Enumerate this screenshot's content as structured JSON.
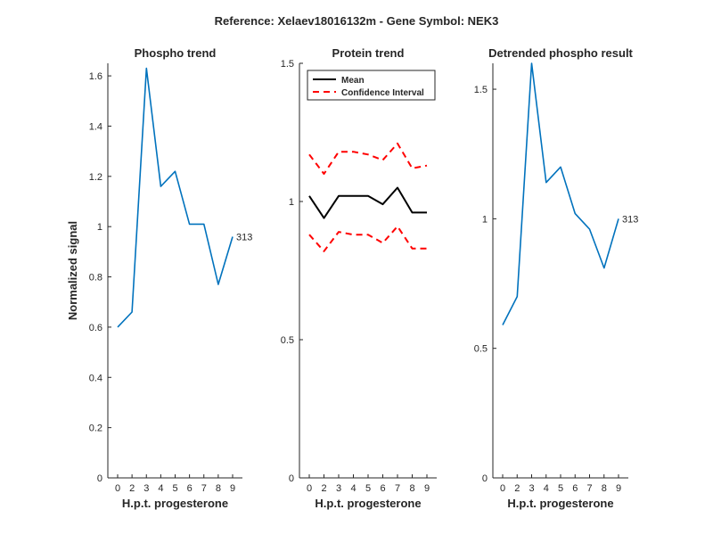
{
  "figure": {
    "suptitle": "Reference:  Xelaev18016132m - Gene Symbol:  NEK3"
  },
  "chart_data": [
    {
      "type": "line",
      "title": "Phospho trend",
      "xlabel": "H.p.t. progesterone",
      "ylabel": "Normalized signal",
      "categories": [
        "0",
        "2",
        "3",
        "4",
        "5",
        "6",
        "7",
        "8",
        "9"
      ],
      "ylim": [
        0,
        1.65
      ],
      "yticks": [
        0,
        0.2,
        0.4,
        0.6,
        0.8,
        1,
        1.2,
        1.4,
        1.6
      ],
      "ytick_labels": [
        "0",
        "0.2",
        "0.4",
        "0.6",
        "0.8",
        "1",
        "1.2",
        "1.4",
        "1.6"
      ],
      "series": [
        {
          "values": [
            0.6,
            0.66,
            1.63,
            1.16,
            1.22,
            1.01,
            1.01,
            0.77,
            0.96
          ],
          "color": "#0072BD",
          "style": "solid"
        }
      ],
      "end_label": "313",
      "grid": false
    },
    {
      "type": "line",
      "title": "Protein trend",
      "xlabel": "H.p.t. progesterone",
      "ylabel": "",
      "categories": [
        "0",
        "2",
        "3",
        "4",
        "5",
        "6",
        "7",
        "8",
        "9"
      ],
      "ylim": [
        0,
        1.5
      ],
      "yticks": [
        0,
        0.5,
        1,
        1.5
      ],
      "ytick_labels": [
        "0",
        "0.5",
        "1",
        "1.5"
      ],
      "series": [
        {
          "name": "Mean",
          "values": [
            1.02,
            0.94,
            1.02,
            1.02,
            1.02,
            0.99,
            1.05,
            0.96,
            0.96
          ],
          "color": "#000000",
          "style": "solid"
        },
        {
          "name": "Confidence Interval",
          "values": [
            1.17,
            1.1,
            1.18,
            1.18,
            1.17,
            1.15,
            1.21,
            1.12,
            1.13
          ],
          "color": "#FF0000",
          "style": "dashed"
        },
        {
          "values": [
            0.88,
            0.82,
            0.89,
            0.88,
            0.88,
            0.85,
            0.91,
            0.83,
            0.83
          ],
          "color": "#FF0000",
          "style": "dashed"
        }
      ],
      "legend": {
        "placement": "top-left",
        "entries": [
          {
            "label": "Mean",
            "color": "#000000",
            "style": "solid"
          },
          {
            "label": "Confidence Interval",
            "color": "#FF0000",
            "style": "dashed"
          }
        ]
      },
      "grid": false
    },
    {
      "type": "line",
      "title": "Detrended phospho result",
      "xlabel": "H.p.t. progesterone",
      "ylabel": "",
      "categories": [
        "0",
        "2",
        "3",
        "4",
        "5",
        "6",
        "7",
        "8",
        "9"
      ],
      "ylim": [
        0,
        1.6
      ],
      "yticks": [
        0,
        0.5,
        1,
        1.5
      ],
      "ytick_labels": [
        "0",
        "0.5",
        "1",
        "1.5"
      ],
      "series": [
        {
          "values": [
            0.59,
            0.7,
            1.6,
            1.14,
            1.2,
            1.02,
            0.96,
            0.81,
            1.0
          ],
          "color": "#0072BD",
          "style": "solid"
        }
      ],
      "end_label": "313",
      "grid": false
    }
  ]
}
